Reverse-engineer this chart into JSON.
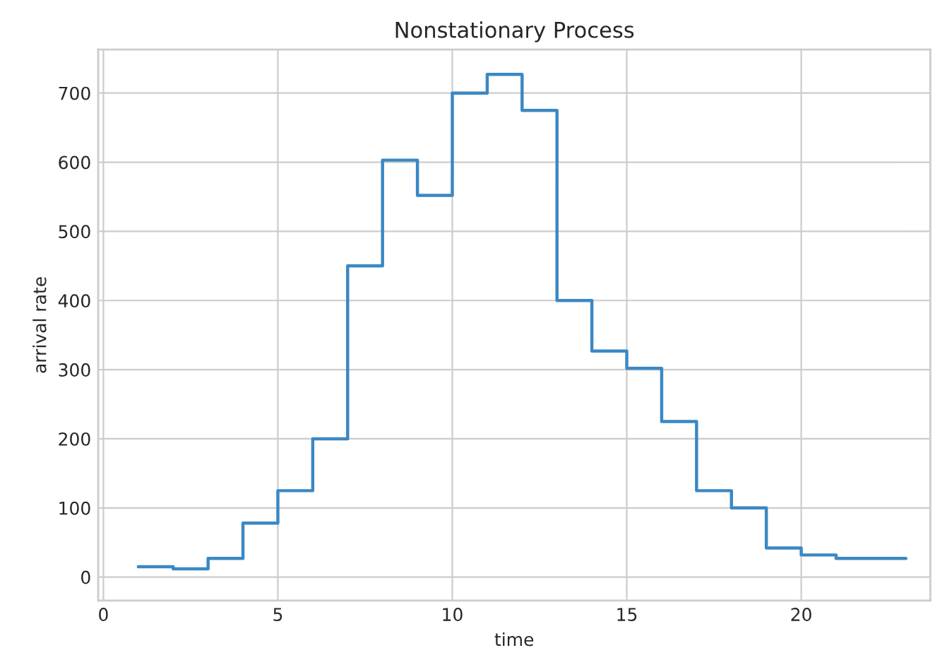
{
  "chart_data": {
    "type": "step",
    "title": "Nonstationary Process",
    "xlabel": "time",
    "ylabel": "arrival rate",
    "x": [
      1,
      2,
      3,
      4,
      5,
      6,
      7,
      8,
      9,
      10,
      11,
      12,
      13,
      14,
      15,
      16,
      17,
      18,
      19,
      20,
      21,
      22,
      23
    ],
    "series": [
      {
        "color": "#3a88c4",
        "values": [
          15,
          12,
          27,
          78,
          125,
          200,
          450,
          603,
          552,
          700,
          727,
          675,
          400,
          327,
          302,
          225,
          125,
          100,
          42,
          32,
          27,
          27,
          27
        ]
      }
    ],
    "xlim": [
      -0.15,
      23.7
    ],
    "ylim": [
      -34,
      763
    ],
    "xticks": [
      0,
      5,
      10,
      15,
      20
    ],
    "yticks": [
      0,
      100,
      200,
      300,
      400,
      500,
      600,
      700
    ],
    "grid": true
  }
}
